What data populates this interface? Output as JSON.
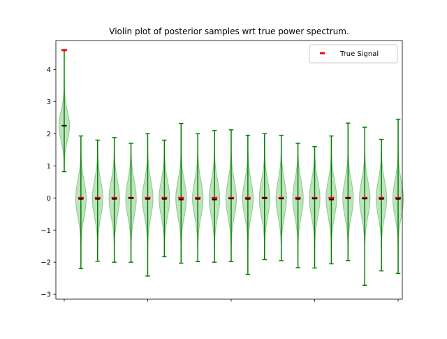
{
  "chart_data": {
    "type": "violin",
    "title": "Violin plot of posterior samples wrt true power spectrum.",
    "xlabel": "",
    "ylabel": "",
    "ylim": [
      -3.15,
      4.9
    ],
    "xlim": [
      -0.5,
      20.25
    ],
    "yticks": [
      -3,
      -2,
      -1,
      0,
      1,
      2,
      3,
      4
    ],
    "ytick_labels": [
      "−3",
      "−2",
      "−1",
      "0",
      "1",
      "2",
      "3",
      "4"
    ],
    "xticks": [
      0,
      5,
      10,
      15,
      20
    ],
    "xtick_labels": [
      "",
      "",
      "",
      "",
      ""
    ],
    "grid": false,
    "legend": {
      "location": "top-right",
      "entries": [
        "True Signal"
      ]
    },
    "colors": {
      "violin_fill": "#2ca02c",
      "violin_edge": "#2ca02c",
      "whisker": "#008000",
      "median": "#000000",
      "true_signal": "#ff0000"
    },
    "violins": [
      {
        "x": 0,
        "min": 0.82,
        "max": 4.6,
        "median": 2.25,
        "center": 2.25,
        "spread": 0.45,
        "true": 4.6
      },
      {
        "x": 1,
        "min": -2.2,
        "max": 1.93,
        "median": -0.03,
        "center": -0.02,
        "spread": 0.55,
        "true": 0.0
      },
      {
        "x": 2,
        "min": -1.97,
        "max": 1.8,
        "median": -0.03,
        "center": -0.02,
        "spread": 0.55,
        "true": 0.0
      },
      {
        "x": 3,
        "min": -2.0,
        "max": 1.88,
        "median": -0.03,
        "center": -0.02,
        "spread": 0.55,
        "true": 0.0
      },
      {
        "x": 4,
        "min": -2.0,
        "max": 1.7,
        "median": 0.0,
        "center": -0.02,
        "spread": 0.55,
        "true": 0.0
      },
      {
        "x": 5,
        "min": -2.43,
        "max": 2.0,
        "median": -0.03,
        "center": -0.02,
        "spread": 0.55,
        "true": 0.0
      },
      {
        "x": 6,
        "min": -1.83,
        "max": 1.8,
        "median": -0.03,
        "center": -0.02,
        "spread": 0.55,
        "true": 0.0
      },
      {
        "x": 7,
        "min": -2.03,
        "max": 2.32,
        "median": -0.05,
        "center": -0.02,
        "spread": 0.55,
        "true": 0.0
      },
      {
        "x": 8,
        "min": -1.98,
        "max": 2.0,
        "median": -0.03,
        "center": -0.02,
        "spread": 0.55,
        "true": 0.0
      },
      {
        "x": 9,
        "min": -2.0,
        "max": 2.1,
        "median": -0.05,
        "center": -0.02,
        "spread": 0.55,
        "true": 0.0
      },
      {
        "x": 10,
        "min": -1.98,
        "max": 2.12,
        "median": -0.02,
        "center": -0.02,
        "spread": 0.55,
        "true": 0.0
      },
      {
        "x": 11,
        "min": -2.38,
        "max": 1.95,
        "median": -0.03,
        "center": -0.02,
        "spread": 0.55,
        "true": 0.0
      },
      {
        "x": 12,
        "min": -1.92,
        "max": 2.0,
        "median": 0.0,
        "center": -0.02,
        "spread": 0.55,
        "true": 0.0
      },
      {
        "x": 13,
        "min": -1.95,
        "max": 1.95,
        "median": -0.02,
        "center": -0.02,
        "spread": 0.55,
        "true": 0.0
      },
      {
        "x": 14,
        "min": -2.17,
        "max": 1.7,
        "median": -0.03,
        "center": -0.02,
        "spread": 0.55,
        "true": 0.0
      },
      {
        "x": 15,
        "min": -2.18,
        "max": 1.6,
        "median": -0.02,
        "center": -0.02,
        "spread": 0.55,
        "true": 0.0
      },
      {
        "x": 16,
        "min": -2.05,
        "max": 1.93,
        "median": -0.05,
        "center": -0.02,
        "spread": 0.55,
        "true": 0.0
      },
      {
        "x": 17,
        "min": -1.95,
        "max": 2.33,
        "median": 0.0,
        "center": -0.02,
        "spread": 0.55,
        "true": 0.0
      },
      {
        "x": 18,
        "min": -2.72,
        "max": 2.2,
        "median": -0.02,
        "center": -0.02,
        "spread": 0.55,
        "true": 0.0
      },
      {
        "x": 19,
        "min": -2.27,
        "max": 1.82,
        "median": -0.03,
        "center": -0.02,
        "spread": 0.55,
        "true": 0.0
      },
      {
        "x": 20,
        "min": -2.35,
        "max": 2.45,
        "median": -0.03,
        "center": -0.02,
        "spread": 0.55,
        "true": 0.0
      }
    ]
  }
}
